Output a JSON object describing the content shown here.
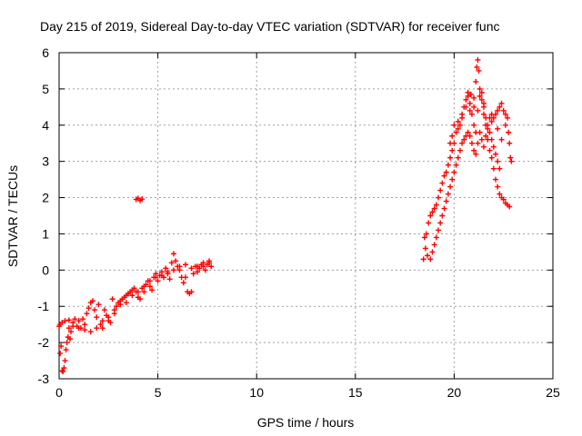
{
  "chart_data": {
    "type": "scatter",
    "title": "Day 215 of 2019, Sidereal Day-to-day VTEC variation (SDTVAR) for receiver func",
    "xlabel": "GPS time / hours",
    "ylabel": "SDTVAR / TECUs",
    "xlim": [
      0,
      25
    ],
    "ylim": [
      -3,
      6
    ],
    "xticks": [
      "0",
      "5",
      "10",
      "15",
      "20",
      "25"
    ],
    "yticks": [
      "-3",
      "-2",
      "-1",
      "0",
      "1",
      "2",
      "3",
      "4",
      "5",
      "6"
    ],
    "grid": true,
    "marker": "plus",
    "color": "#ff0000",
    "series": [
      {
        "values": [
          [
            0.0,
            -1.55
          ],
          [
            0.05,
            -2.3
          ],
          [
            0.1,
            -2.1
          ],
          [
            0.15,
            -2.78
          ],
          [
            0.2,
            -2.8
          ],
          [
            0.25,
            -2.7
          ],
          [
            0.3,
            -2.5
          ],
          [
            0.35,
            -2.2
          ],
          [
            0.4,
            -2.0
          ],
          [
            0.45,
            -1.85
          ],
          [
            0.5,
            -1.6
          ],
          [
            0.55,
            -1.9
          ],
          [
            0.6,
            -1.7
          ],
          [
            0.7,
            -1.45
          ],
          [
            0.8,
            -1.35
          ],
          [
            0.9,
            -1.55
          ],
          [
            1.0,
            -1.4
          ],
          [
            1.1,
            -1.6
          ],
          [
            1.2,
            -1.35
          ],
          [
            1.3,
            -1.5
          ],
          [
            1.4,
            -1.2
          ],
          [
            1.5,
            -1.05
          ],
          [
            1.6,
            -0.9
          ],
          [
            1.7,
            -0.85
          ],
          [
            1.8,
            -1.1
          ],
          [
            1.9,
            -1.3
          ],
          [
            2.0,
            -0.95
          ],
          [
            2.1,
            -1.5
          ],
          [
            2.2,
            -1.6
          ],
          [
            2.3,
            -1.1
          ],
          [
            2.4,
            -1.25
          ],
          [
            2.5,
            -1.4
          ],
          [
            2.6,
            -1.45
          ],
          [
            2.7,
            -0.8
          ],
          [
            2.8,
            -1.2
          ],
          [
            2.9,
            -1.0
          ],
          [
            3.0,
            -0.9
          ],
          [
            3.1,
            -0.85
          ],
          [
            3.2,
            -0.8
          ],
          [
            3.3,
            -0.75
          ],
          [
            3.4,
            -0.7
          ],
          [
            3.5,
            -0.65
          ],
          [
            3.6,
            -0.6
          ],
          [
            3.7,
            -0.55
          ],
          [
            3.8,
            -0.5
          ],
          [
            3.9,
            -0.6
          ],
          [
            4.0,
            -0.75
          ],
          [
            4.1,
            -0.8
          ],
          [
            4.2,
            -0.5
          ],
          [
            4.3,
            -0.6
          ],
          [
            4.4,
            -0.4
          ],
          [
            4.5,
            -0.3
          ],
          [
            4.6,
            -0.45
          ],
          [
            4.7,
            -0.55
          ],
          [
            4.8,
            -0.2
          ],
          [
            4.9,
            -0.1
          ],
          [
            5.0,
            -0.3
          ],
          [
            5.1,
            -0.15
          ],
          [
            5.2,
            -0.05
          ],
          [
            5.3,
            -0.2
          ],
          [
            5.4,
            0.05
          ],
          [
            5.5,
            -0.1
          ],
          [
            5.6,
            -0.25
          ],
          [
            5.7,
            0.2
          ],
          [
            5.8,
            0.45
          ],
          [
            5.9,
            0.25
          ],
          [
            6.0,
            0.1
          ],
          [
            6.1,
            0.0
          ],
          [
            6.2,
            -0.2
          ],
          [
            6.3,
            -0.35
          ],
          [
            6.4,
            -0.2
          ],
          [
            6.5,
            -0.6
          ],
          [
            6.6,
            -0.65
          ],
          [
            6.7,
            -0.6
          ],
          [
            6.8,
            -0.1
          ],
          [
            6.9,
            0.1
          ],
          [
            7.0,
            -0.05
          ],
          [
            7.1,
            0.05
          ],
          [
            7.2,
            0.15
          ],
          [
            7.3,
            0.1
          ],
          [
            7.4,
            0.0
          ],
          [
            7.5,
            0.15
          ],
          [
            7.6,
            0.25
          ],
          [
            7.7,
            0.1
          ],
          [
            0.05,
            -1.5
          ],
          [
            0.15,
            -1.45
          ],
          [
            0.3,
            -1.4
          ],
          [
            0.5,
            -1.38
          ],
          [
            0.7,
            -1.55
          ],
          [
            1.0,
            -1.6
          ],
          [
            1.3,
            -1.65
          ],
          [
            1.6,
            -1.7
          ],
          [
            1.9,
            -1.6
          ],
          [
            2.2,
            -1.4
          ],
          [
            2.5,
            -1.3
          ],
          [
            2.8,
            -1.1
          ],
          [
            3.1,
            -0.95
          ],
          [
            3.4,
            -0.9
          ],
          [
            3.7,
            -0.7
          ],
          [
            4.0,
            -0.6
          ],
          [
            4.3,
            -0.45
          ],
          [
            4.6,
            -0.3
          ],
          [
            4.9,
            -0.2
          ],
          [
            5.2,
            -0.15
          ],
          [
            5.5,
            -0.05
          ],
          [
            5.8,
            0.0
          ],
          [
            6.1,
            0.1
          ],
          [
            6.4,
            0.15
          ],
          [
            6.7,
            0.05
          ],
          [
            7.0,
            0.1
          ],
          [
            7.3,
            0.2
          ],
          [
            7.6,
            0.2
          ],
          [
            3.9,
            1.95
          ],
          [
            4.0,
            1.98
          ],
          [
            4.1,
            1.92
          ],
          [
            4.2,
            1.96
          ],
          [
            18.45,
            0.3
          ],
          [
            18.5,
            0.9
          ],
          [
            18.55,
            0.6
          ],
          [
            18.6,
            1.0
          ],
          [
            18.65,
            0.4
          ],
          [
            18.7,
            1.3
          ],
          [
            18.8,
            1.5
          ],
          [
            18.9,
            1.6
          ],
          [
            19.0,
            1.7
          ],
          [
            19.1,
            1.8
          ],
          [
            19.2,
            2.0
          ],
          [
            19.3,
            2.2
          ],
          [
            19.4,
            2.4
          ],
          [
            19.5,
            2.6
          ],
          [
            19.6,
            2.7
          ],
          [
            19.7,
            2.9
          ],
          [
            19.8,
            3.1
          ],
          [
            19.9,
            3.3
          ],
          [
            20.0,
            3.5
          ],
          [
            20.1,
            3.8
          ],
          [
            20.2,
            3.9
          ],
          [
            20.3,
            4.0
          ],
          [
            20.4,
            4.2
          ],
          [
            20.5,
            4.5
          ],
          [
            20.6,
            4.7
          ],
          [
            20.7,
            4.9
          ],
          [
            20.8,
            4.6
          ],
          [
            20.9,
            4.3
          ],
          [
            21.0,
            4.0
          ],
          [
            21.1,
            3.8
          ],
          [
            21.2,
            4.4
          ],
          [
            21.3,
            4.8
          ],
          [
            21.4,
            4.7
          ],
          [
            21.5,
            4.3
          ],
          [
            21.6,
            4.0
          ],
          [
            21.7,
            3.6
          ],
          [
            21.8,
            3.3
          ],
          [
            21.9,
            3.1
          ],
          [
            22.0,
            2.8
          ],
          [
            22.1,
            2.5
          ],
          [
            22.2,
            2.3
          ],
          [
            22.3,
            2.1
          ],
          [
            22.4,
            2.0
          ],
          [
            22.5,
            1.95
          ],
          [
            22.6,
            1.85
          ],
          [
            22.7,
            1.8
          ],
          [
            22.8,
            1.75
          ],
          [
            18.8,
            0.3
          ],
          [
            18.9,
            0.5
          ],
          [
            19.0,
            0.7
          ],
          [
            19.1,
            0.9
          ],
          [
            19.2,
            1.1
          ],
          [
            19.3,
            1.3
          ],
          [
            19.4,
            1.5
          ],
          [
            19.5,
            1.7
          ],
          [
            19.6,
            1.9
          ],
          [
            19.7,
            2.1
          ],
          [
            19.8,
            2.3
          ],
          [
            19.9,
            2.5
          ],
          [
            20.0,
            2.7
          ],
          [
            20.1,
            2.9
          ],
          [
            20.2,
            3.1
          ],
          [
            20.3,
            3.3
          ],
          [
            20.4,
            3.5
          ],
          [
            20.5,
            3.6
          ],
          [
            20.6,
            3.7
          ],
          [
            20.7,
            3.8
          ],
          [
            20.8,
            3.7
          ],
          [
            20.9,
            3.5
          ],
          [
            21.0,
            3.3
          ],
          [
            21.1,
            3.2
          ],
          [
            21.2,
            3.5
          ],
          [
            21.3,
            3.8
          ],
          [
            21.4,
            3.6
          ],
          [
            21.5,
            3.4
          ],
          [
            21.6,
            3.7
          ],
          [
            21.7,
            3.9
          ],
          [
            21.8,
            3.8
          ],
          [
            21.9,
            3.6
          ],
          [
            22.0,
            3.4
          ],
          [
            22.1,
            3.2
          ],
          [
            22.2,
            3.0
          ],
          [
            22.3,
            2.8
          ],
          [
            19.8,
            3.5
          ],
          [
            19.9,
            3.7
          ],
          [
            20.0,
            4.0
          ],
          [
            20.2,
            4.1
          ],
          [
            20.4,
            4.3
          ],
          [
            20.6,
            4.5
          ],
          [
            20.8,
            4.4
          ],
          [
            21.0,
            4.5
          ],
          [
            21.1,
            5.2
          ],
          [
            21.15,
            5.6
          ],
          [
            21.2,
            5.8
          ],
          [
            21.25,
            5.5
          ],
          [
            21.3,
            5.0
          ],
          [
            21.4,
            4.9
          ],
          [
            21.5,
            4.5
          ],
          [
            21.6,
            4.2
          ],
          [
            21.7,
            4.0
          ],
          [
            21.8,
            4.2
          ],
          [
            21.9,
            4.3
          ],
          [
            22.0,
            4.2
          ],
          [
            22.1,
            4.3
          ],
          [
            22.2,
            4.4
          ],
          [
            22.3,
            4.5
          ],
          [
            22.4,
            4.6
          ],
          [
            22.5,
            4.4
          ],
          [
            22.6,
            4.3
          ],
          [
            22.7,
            4.2
          ],
          [
            22.75,
            3.8
          ],
          [
            22.8,
            3.5
          ],
          [
            22.85,
            3.1
          ],
          [
            22.9,
            3.0
          ],
          [
            20.7,
            4.8
          ],
          [
            20.85,
            4.85
          ],
          [
            21.0,
            4.75
          ],
          [
            21.5,
            4.6
          ],
          [
            21.9,
            4.1
          ],
          [
            22.2,
            3.9
          ],
          [
            22.4,
            3.6
          ],
          [
            22.6,
            4.0
          ]
        ]
      }
    ]
  }
}
